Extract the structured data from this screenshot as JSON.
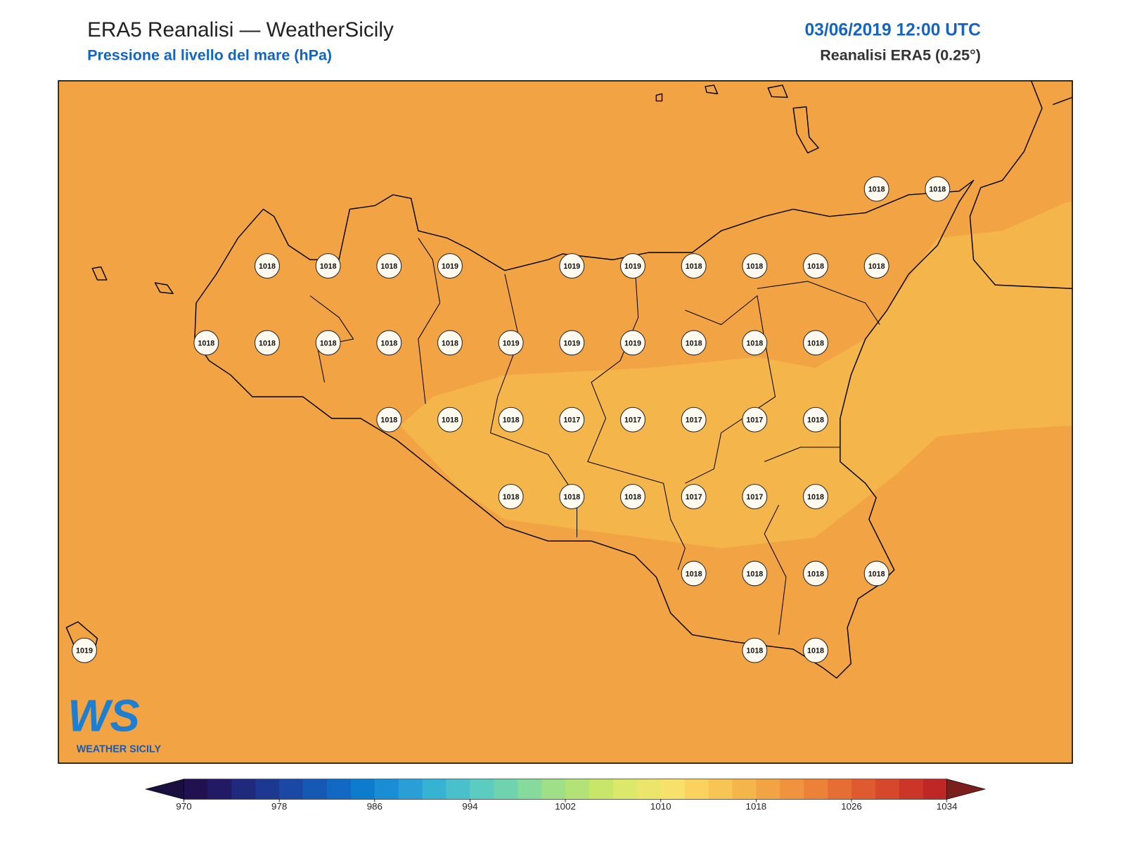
{
  "header": {
    "title": "ERA5 Reanalisi — WeatherSicily",
    "subtitle": "Pressione al livello del mare (hPa)",
    "datetime": "03/06/2019 12:00 UTC",
    "source": "Reanalisi ERA5 (0.25°)"
  },
  "stations": [
    1018,
    1018,
    1018,
    1018,
    1018,
    1019,
    1019,
    1019,
    1018,
    1018,
    1018,
    1018,
    1018,
    1018,
    1018,
    1018,
    1018,
    1019,
    1019,
    1019,
    1018,
    1018,
    1018,
    1018,
    1018,
    1018,
    1017,
    1017,
    1017,
    1017,
    1018,
    1018,
    1018,
    1018,
    1017,
    1017,
    1018,
    1018,
    1018,
    1018,
    1018,
    1019,
    1018,
    1018
  ],
  "colorbar": {
    "levels": [
      970,
      972,
      974,
      976,
      978,
      980,
      982,
      984,
      986,
      988,
      990,
      992,
      994,
      996,
      998,
      1000,
      1002,
      1004,
      1006,
      1008,
      1010,
      1012,
      1014,
      1016,
      1018,
      1020,
      1022,
      1024,
      1026,
      1028,
      1030,
      1032,
      1034
    ],
    "ticks": [
      970,
      978,
      986,
      994,
      1002,
      1010,
      1018,
      1026,
      1034
    ],
    "colors": [
      "#221150",
      "#231a66",
      "#1f2a7d",
      "#1c3890",
      "#1a48a4",
      "#1559b5",
      "#1169c3",
      "#0d7ccd",
      "#1a8ed4",
      "#2a9fd6",
      "#36b2d3",
      "#4ac0cc",
      "#5ccbc0",
      "#6fd3b0",
      "#86da9c",
      "#9edf88",
      "#b3e376",
      "#c8e66a",
      "#dbe86a",
      "#ebe66b",
      "#f8e16a",
      "#fbd25d",
      "#f8c453",
      "#f4b54a",
      "#f2a444",
      "#f0933e",
      "#ec8138",
      "#e66d33",
      "#df5a2f",
      "#d6482b",
      "#cc3628",
      "#bf2727"
    ],
    "extend_colors": [
      "#1a0f3f",
      "#7a1e1e"
    ]
  },
  "logo": {
    "mark": "WS",
    "name": "WEATHER SICILY"
  }
}
